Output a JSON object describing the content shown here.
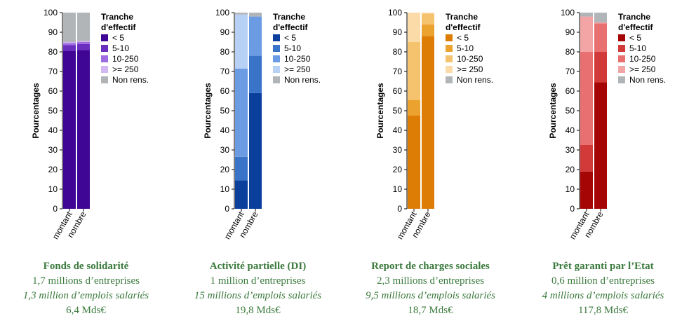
{
  "chart_data": [
    {
      "type": "bar",
      "stacked": true,
      "categories": [
        "montant",
        "nombre"
      ],
      "ylabel": "Pourcentages",
      "ylim": [
        0,
        100
      ],
      "yticks": [
        0,
        10,
        20,
        30,
        40,
        50,
        60,
        70,
        80,
        90,
        100
      ],
      "legend_title": [
        "Tranche",
        "d'effectif"
      ],
      "legend_position": "right",
      "series": [
        {
          "name": "< 5",
          "color": "#3f0594",
          "values": [
            80.5,
            81
          ]
        },
        {
          "name": "5-10",
          "color": "#6b2fc0",
          "values": [
            3,
            3
          ]
        },
        {
          "name": "10-250",
          "color": "#9f6be0",
          "values": [
            1,
            1
          ]
        },
        {
          "name": ">= 250",
          "color": "#d3b7f4",
          "values": [
            0.5,
            0.5
          ]
        },
        {
          "name": "Non rens.",
          "color": "#b1b5b8",
          "values": [
            15,
            14.5
          ]
        }
      ]
    },
    {
      "type": "bar",
      "stacked": true,
      "categories": [
        "montant",
        "nombre"
      ],
      "ylabel": "Pourcentages",
      "ylim": [
        0,
        100
      ],
      "yticks": [
        0,
        10,
        20,
        30,
        40,
        50,
        60,
        70,
        80,
        90,
        100
      ],
      "legend_title": [
        "Tranche",
        "d'effectif"
      ],
      "legend_position": "right",
      "series": [
        {
          "name": "< 5",
          "color": "#0a3f9c",
          "values": [
            14.5,
            59
          ]
        },
        {
          "name": "5-10",
          "color": "#3a74c9",
          "values": [
            12,
            19
          ]
        },
        {
          "name": "10-250",
          "color": "#6b9be3",
          "values": [
            45,
            20
          ]
        },
        {
          "name": ">= 250",
          "color": "#b7d1f6",
          "values": [
            27.5,
            0
          ]
        },
        {
          "name": "Non rens.",
          "color": "#b1b5b8",
          "values": [
            1,
            2
          ]
        }
      ]
    },
    {
      "type": "bar",
      "stacked": true,
      "categories": [
        "montant",
        "nombre"
      ],
      "ylabel": "Pourcentages",
      "ylim": [
        0,
        100
      ],
      "yticks": [
        0,
        10,
        20,
        30,
        40,
        50,
        60,
        70,
        80,
        90,
        100
      ],
      "legend_title": [
        "Tranche",
        "d'effectif"
      ],
      "legend_position": "right",
      "series": [
        {
          "name": "< 5",
          "color": "#de7d05",
          "values": [
            47.5,
            88
          ]
        },
        {
          "name": "5-10",
          "color": "#eba22f",
          "values": [
            8,
            6
          ]
        },
        {
          "name": "10-250",
          "color": "#f5c26e",
          "values": [
            29.5,
            5.5
          ]
        },
        {
          "name": ">= 250",
          "color": "#fbdca8",
          "values": [
            15,
            0.5
          ]
        },
        {
          "name": "Non rens.",
          "color": "#b1b5b8",
          "values": [
            0,
            0
          ]
        }
      ]
    },
    {
      "type": "bar",
      "stacked": true,
      "categories": [
        "montant",
        "nombre"
      ],
      "ylabel": "Pourcentages",
      "ylim": [
        0,
        100
      ],
      "yticks": [
        0,
        10,
        20,
        30,
        40,
        50,
        60,
        70,
        80,
        90,
        100
      ],
      "legend_title": [
        "Tranche",
        "d'effectif"
      ],
      "legend_position": "right",
      "series": [
        {
          "name": "< 5",
          "color": "#a60505",
          "values": [
            19,
            64.5
          ]
        },
        {
          "name": "5-10",
          "color": "#d23a3a",
          "values": [
            13.5,
            15.5
          ]
        },
        {
          "name": "10-250",
          "color": "#e87070",
          "values": [
            47.5,
            14.5
          ]
        },
        {
          "name": ">= 250",
          "color": "#f3a5a5",
          "values": [
            18,
            0.5
          ]
        },
        {
          "name": "Non rens.",
          "color": "#b1b5b8",
          "values": [
            2,
            5
          ]
        }
      ]
    }
  ],
  "captions": [
    {
      "title": "Fonds de solidarité",
      "line2": "1,7 millions d’entreprises",
      "line3": "1,3 million d’emplois salariés",
      "line4": "6,4 Mds€"
    },
    {
      "title": "Activité partielle (DI)",
      "line2": "1 million d’entreprises",
      "line3": "15 millions d’emplois salariés",
      "line4": "19,8 Mds€"
    },
    {
      "title": "Report de charges sociales",
      "line2": "2,3 millions d’entreprises",
      "line3": "9,5 millions d’emplois salariés",
      "line4": "18,7 Mds€"
    },
    {
      "title": "Prêt garanti par l’Etat",
      "line2": "0,6 million d’entreprises",
      "line3": "4 millions d’emplois salariés",
      "line4": "117,8 Mds€"
    }
  ]
}
